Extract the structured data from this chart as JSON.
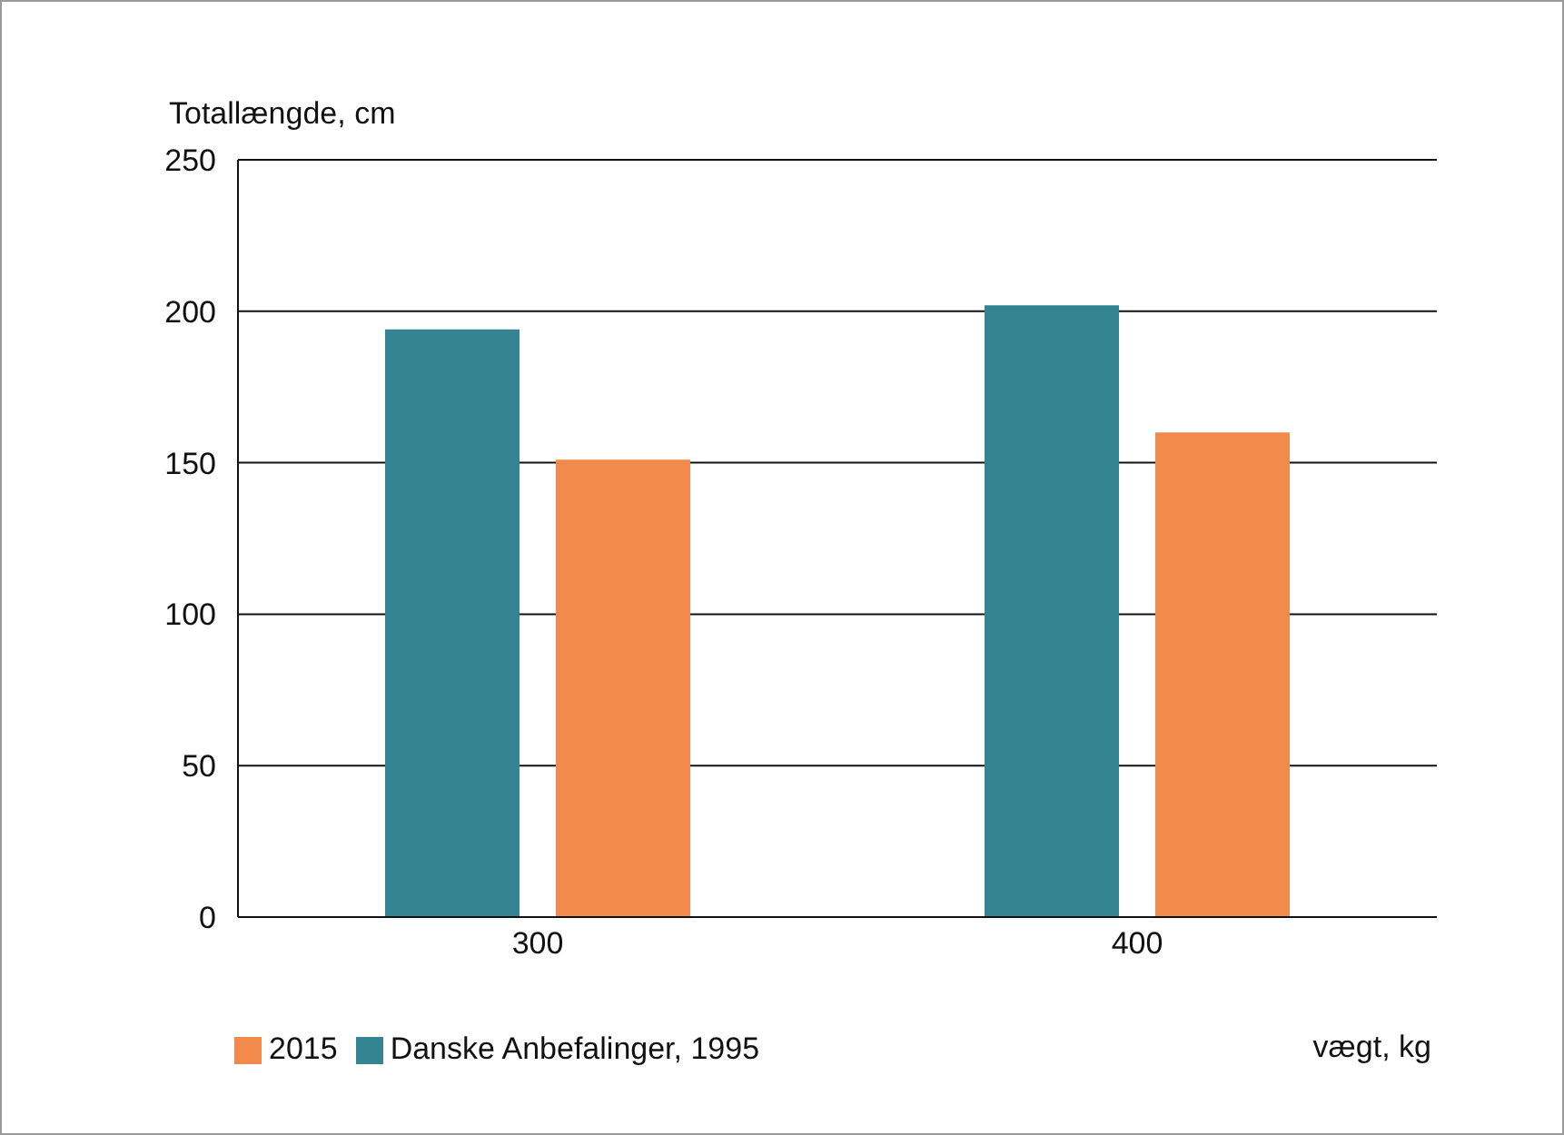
{
  "chart_data": {
    "type": "bar",
    "ylabel": "Totallængde, cm",
    "xlabel": "vægt, kg",
    "categories": [
      "300",
      "400"
    ],
    "series": [
      {
        "name": "Danske Anbefalinger, 1995",
        "color": "#348591",
        "values": [
          194,
          202
        ]
      },
      {
        "name": "2015",
        "color": "#f28a4b",
        "values": [
          151,
          160
        ]
      }
    ],
    "ylim": [
      0,
      250
    ],
    "yticks": [
      0,
      50,
      100,
      150,
      200,
      250
    ],
    "grid": "y",
    "legend": "bottom left"
  }
}
